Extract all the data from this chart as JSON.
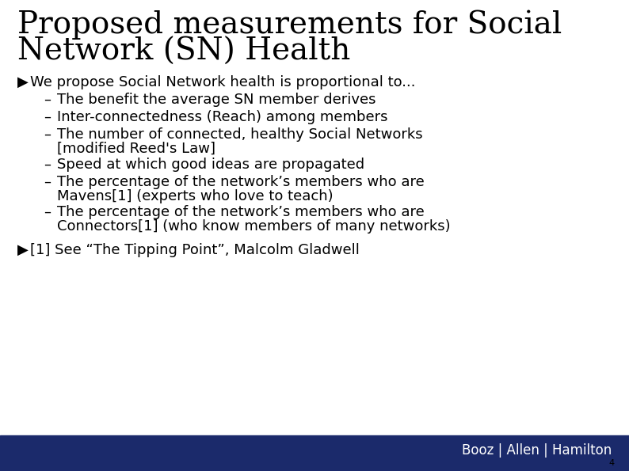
{
  "title_line1": "Proposed measurements for Social",
  "title_line2": "Network (SN) Health",
  "title_fontsize": 28,
  "title_color": "#000000",
  "title_font": "DejaVu Serif",
  "bullet1_arrow": "▶",
  "bullet1_text": " We propose Social Network health is proportional to...",
  "sub_bullets": [
    "The benefit the average SN member derives",
    "Inter-connectedness (Reach) among members",
    "The number of connected, healthy Social Networks\n[modified Reed's Law]",
    "Speed at which good ideas are propagated",
    "The percentage of the network’s members who are\nMavens[1] (experts who love to teach)",
    "The percentage of the network’s members who are\nConnectors[1] (who know members of many networks)"
  ],
  "bullet2_arrow": "▶",
  "bullet2_text": " [1] See “The Tipping Point”, Malcolm Gladwell",
  "body_fontsize": 13,
  "sub_fontsize": 13,
  "footer_text": "Booz | Allen | Hamilton",
  "footer_bg": "#1b2a6b",
  "footer_text_color": "#ffffff",
  "footer_fontsize": 12,
  "page_num": "4",
  "bg_color": "#ffffff",
  "text_color": "#000000",
  "dash_char": "–"
}
